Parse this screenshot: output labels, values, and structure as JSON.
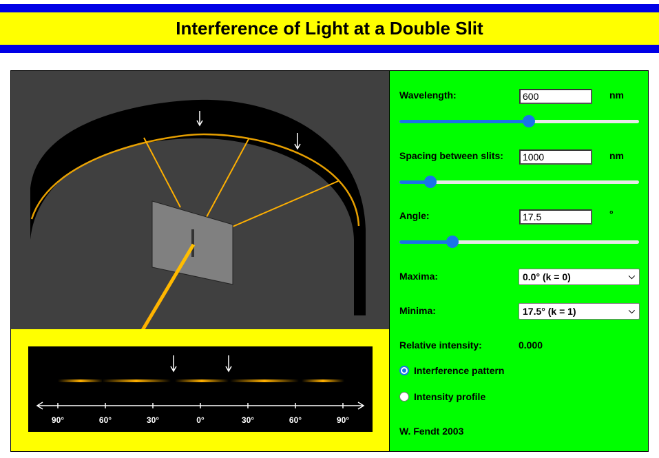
{
  "title": "Interference of Light at a Double Slit",
  "controls": {
    "wavelength": {
      "label": "Wavelength:",
      "value": "600",
      "unit": "nm",
      "slider_fraction": 0.54
    },
    "spacing": {
      "label": "Spacing between slits:",
      "value": "1000",
      "unit": "nm",
      "slider_fraction": 0.13
    },
    "angle": {
      "label": "Angle:",
      "value": "17.5",
      "unit": "°",
      "slider_fraction": 0.22
    },
    "maxima": {
      "label": "Maxima:",
      "selected": "0.0° (k = 0)"
    },
    "minima": {
      "label": "Minima:",
      "selected": "17.5° (k = 1)"
    },
    "intensity": {
      "label": "Relative intensity:",
      "value": "0.000"
    },
    "view_options": [
      {
        "label": "Interference pattern",
        "selected": true
      },
      {
        "label": "Intensity profile",
        "selected": false
      }
    ],
    "credit": "W. Fendt 2003"
  },
  "scale": {
    "ticks": [
      "90°",
      "60°",
      "30°",
      "0°",
      "30°",
      "60°",
      "90°"
    ]
  },
  "colors": {
    "light": "#ffb000",
    "screen_bg": "#404040",
    "panel_bg": "#00ff00",
    "title_band": "#ffff00",
    "title_bars": "#0000e6"
  }
}
